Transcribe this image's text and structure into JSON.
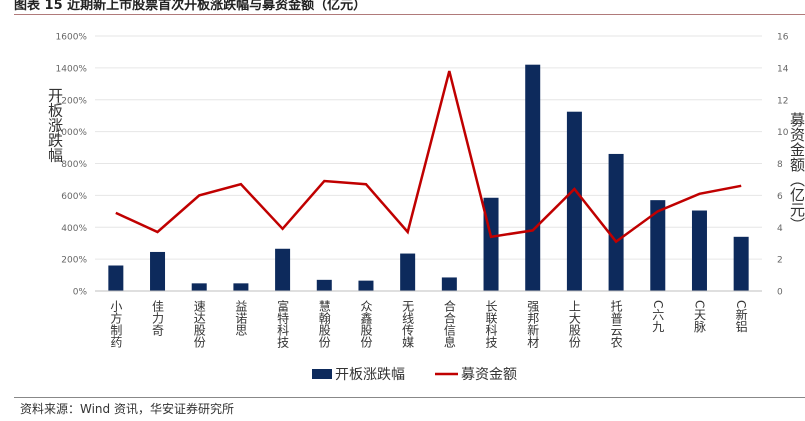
{
  "title": "图表 15 近期新上市股票首次开板涨跌幅与募资金额（亿元）",
  "source": "资料来源：Wind 资讯，华安证券研究所",
  "colors": {
    "bar": "#0d2a5c",
    "line": "#c00000",
    "grid": "#e6e6e6",
    "axis_text": "#666666"
  },
  "chart_data": {
    "type": "bar",
    "categories": [
      "小方制药",
      "佳力奇",
      "速达股份",
      "益诺思",
      "富特科技",
      "慧翰股份",
      "众鑫股份",
      "无线传媒",
      "合合信息",
      "长联科技",
      "强邦新材",
      "上大股份",
      "托普云农",
      "C六九",
      "C天脉",
      "C新铝"
    ],
    "series": [
      {
        "name": "开板涨跌幅",
        "type": "bar",
        "axis": "left",
        "unit": "%",
        "values": [
          160,
          245,
          48,
          48,
          265,
          70,
          65,
          235,
          85,
          585,
          1420,
          1125,
          860,
          570,
          505,
          340
        ]
      },
      {
        "name": "募资金额",
        "type": "line",
        "axis": "right",
        "values": [
          4.9,
          3.7,
          6.0,
          6.7,
          3.9,
          6.9,
          6.7,
          3.7,
          13.8,
          3.4,
          3.8,
          6.4,
          3.1,
          5.0,
          6.1,
          6.6
        ]
      }
    ],
    "ylabel": "开板涨跌幅",
    "ylabel_right": "募资金额（亿元）",
    "ylim": [
      0,
      1600
    ],
    "ylim_right": [
      0,
      16
    ],
    "yticks": [
      "0%",
      "200%",
      "400%",
      "600%",
      "800%",
      "1000%",
      "1200%",
      "1400%",
      "1600%"
    ],
    "yticks_right": [
      "0",
      "2",
      "4",
      "6",
      "8",
      "10",
      "12",
      "14",
      "16"
    ],
    "grid": true,
    "legend_position": "bottom"
  }
}
